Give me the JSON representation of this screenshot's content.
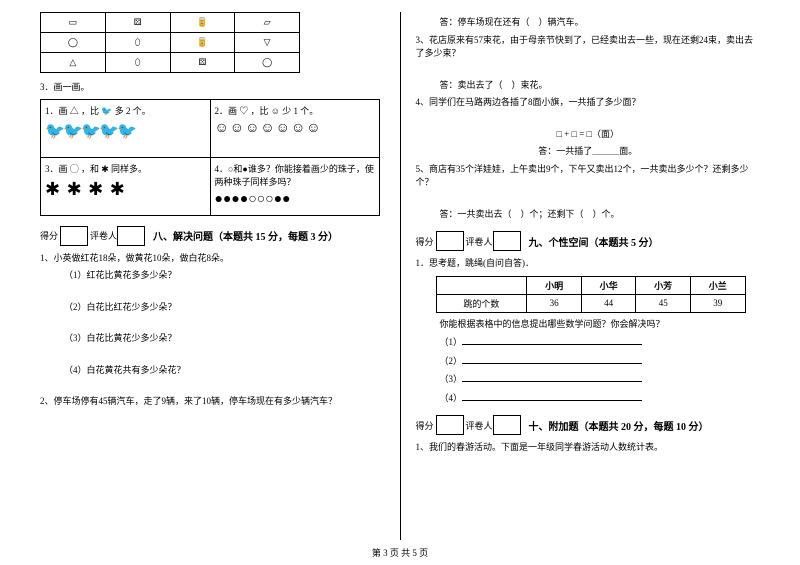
{
  "footer": "第 3 页 共 5 页",
  "left": {
    "grid": [
      [
        "▭",
        "⚄",
        "🥫",
        "▱"
      ],
      [
        "◯",
        "⬯",
        "🥫",
        "▽"
      ],
      [
        "△",
        "⬯",
        "⚄",
        "◯"
      ]
    ],
    "q3": "3．画一画。",
    "draw": {
      "c1": {
        "t": "1．画 △ ，比 🐦 多 2 个。",
        "row": "🐦🐦🐦🐦🐦"
      },
      "c2": {
        "t": "2．画 ♡ ，比 ☺ 少 1 个。",
        "row": "☺☺☺☺☺☺☺"
      },
      "c3": {
        "t": "3．画 ◯ ，和 ✱ 同样多。",
        "row": "✱ ✱ ✱ ✱"
      },
      "c4": {
        "t": "4．○和●谁多？你能接着画少的珠子，使两种珠子同样多吗？",
        "row": "●●●●○○○●●"
      }
    },
    "scoreLabel": "得分",
    "reviewerLabel": "评卷人",
    "s8title": "八、解决问题（本题共 15 分，每题 3 分）",
    "q8_1": "1、小英做红花18朵，做黄花10朵，做白花8朵。",
    "q8_1_1": "（1）红花比黄花多多少朵？",
    "q8_1_2": "（2）白花比红花少多少朵？",
    "q8_1_3": "（3）白花比黄花少多少朵？",
    "q8_1_4": "（4）白花黄花共有多少朵花？",
    "q8_2": "2、停车场停有45辆汽车，走了9辆，来了10辆，停车场现在有多少辆汽车？"
  },
  "right": {
    "qtop_ans": "答：停车场现在还有（　）辆汽车。",
    "q3": "3、花店原来有57束花，由于母亲节快到了，已经卖出去一些，现在还剩24束，卖出去了多少束？",
    "q3_ans": "答：卖出去了（　）束花。",
    "q4": "4、同学们在马路两边各插了8面小旗，一共插了多少面？",
    "q4_eq": "□ + □ = □（面）",
    "q4_ans": "答：一共插了＿＿＿面。",
    "q5": "5、商店有35个洋娃娃，上午卖出9个，下午又卖出12个，一共卖出多少个？还剩多少个？",
    "q5_ans": "答：一共卖出去（　）个；还剩下（　）个。",
    "s9title": "九、个性空间（本题共 5 分）",
    "q9_1": "1．思考题，跳绳(自问自答)．",
    "jump": {
      "rowH": "跳的个数",
      "h1": "小明",
      "h2": "小华",
      "h3": "小芳",
      "h4": "小兰",
      "v1": "36",
      "v2": "44",
      "v3": "45",
      "v4": "39"
    },
    "q9_prompt": "你能根据表格中的信息提出哪些数学问题？你会解决吗？",
    "b1": "（1）",
    "b2": "（2）",
    "b3": "（3）",
    "b4": "（4）",
    "s10title": "十、附加题（本题共 20 分，每题 10 分）",
    "q10_1": "1、我们的春游活动。下面是一年级同学春游活动人数统计表。"
  }
}
